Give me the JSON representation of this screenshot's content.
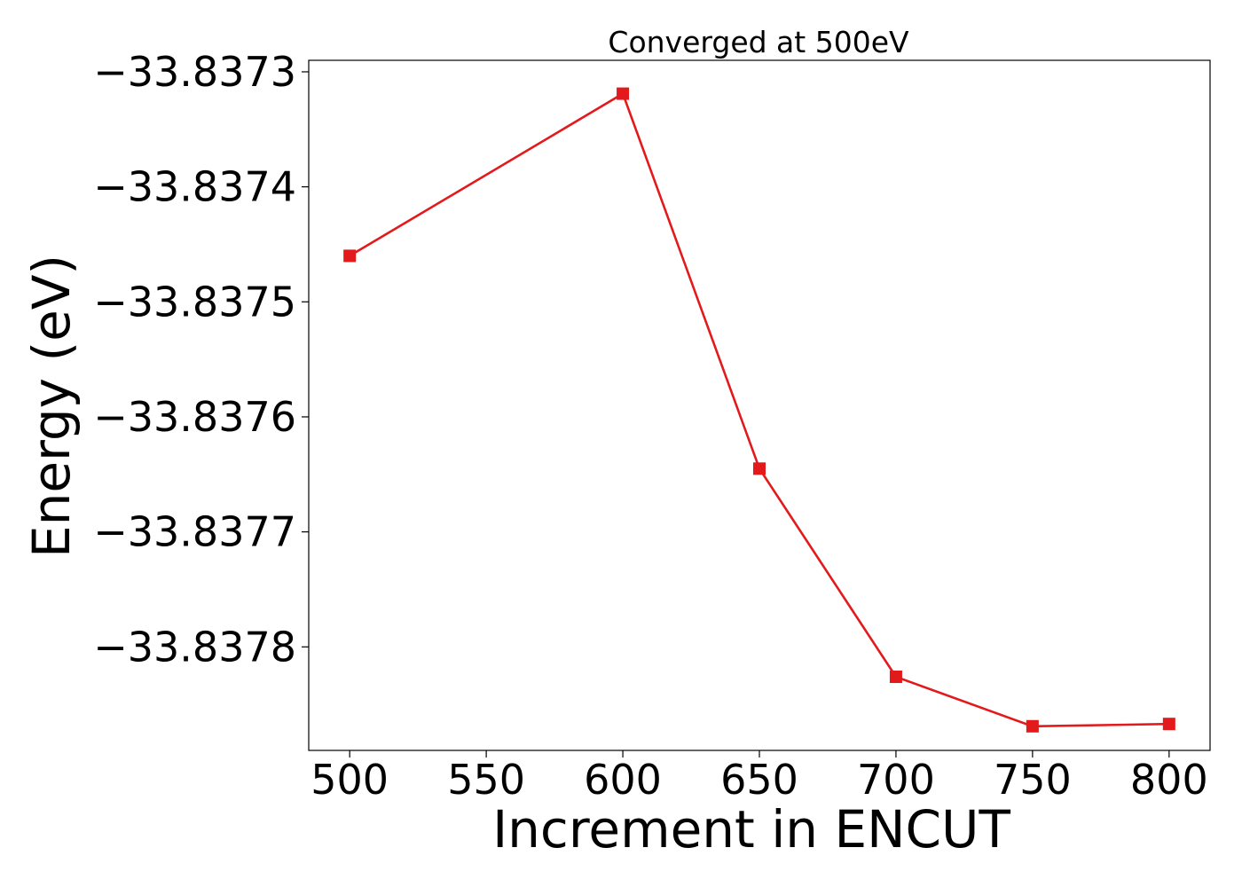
{
  "chart_data": {
    "type": "line",
    "title": "Converged at 500eV",
    "xlabel": "Increment in ENCUT",
    "ylabel": "Energy (eV)",
    "x": [
      500,
      600,
      650,
      700,
      750,
      800
    ],
    "series": [
      {
        "values": [
          -33.83746,
          -33.837319,
          -33.837645,
          -33.837826,
          -33.837869,
          -33.837867
        ],
        "color": "#e31a1c",
        "marker": "square"
      }
    ],
    "xlim": [
      485,
      815
    ],
    "ylim": [
      -33.83789,
      -33.83729
    ],
    "xticks": [
      500,
      550,
      600,
      650,
      700,
      750,
      800
    ],
    "xtick_labels": [
      "500",
      "550",
      "600",
      "650",
      "700",
      "750",
      "800"
    ],
    "yticks": [
      -33.8373,
      -33.8374,
      -33.8375,
      -33.8376,
      -33.8377,
      -33.8378
    ],
    "ytick_labels": [
      "−33.8373",
      "−33.8374",
      "−33.8375",
      "−33.8376",
      "−33.8377",
      "−33.8378"
    ],
    "grid": false,
    "legend": "none"
  }
}
